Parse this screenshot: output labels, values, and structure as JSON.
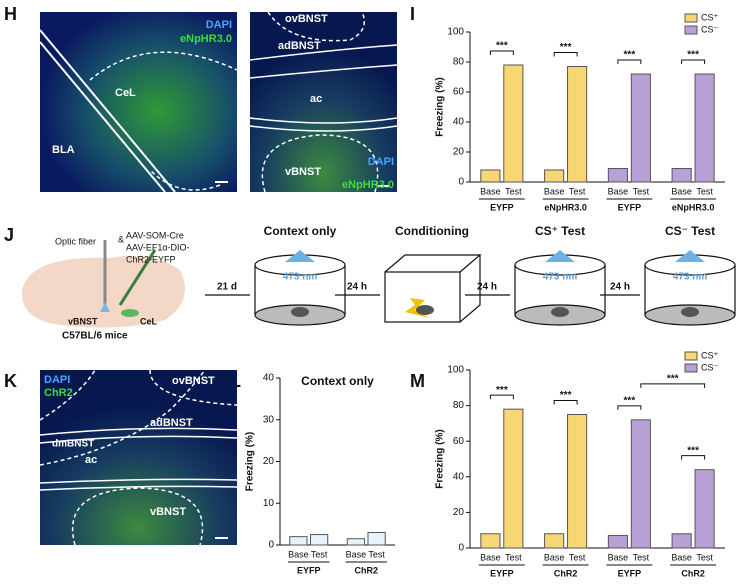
{
  "panels": {
    "H": "H",
    "I": "I",
    "J": "J",
    "K": "K",
    "L": "L",
    "M": "M"
  },
  "h_image": {
    "left": [
      "DAPI",
      "eNpHR3.0",
      "CeL",
      "BLA"
    ],
    "right": [
      "ovBNST",
      "adBNST",
      "ac",
      "vBNST",
      "DAPI",
      "eNpHR3.0"
    ]
  },
  "k_image": [
    "DAPI",
    "ChR2",
    "ovBNST",
    "dmBNST",
    "adBNST",
    "ac",
    "vBNST"
  ],
  "j_diagram": {
    "injection": [
      "Optic fiber",
      "&",
      "AAV-SOM-Cre",
      "AAV-EF1α-DIO-",
      "ChR2-EYFP",
      "vBNST",
      "CeL",
      "C57BL/6 mice"
    ],
    "delays": [
      "21 d",
      "24 h",
      "24 h",
      "24 h"
    ],
    "stages": [
      "Context only",
      "Conditioning",
      "CS⁺ Test",
      "CS⁻ Test"
    ],
    "light": [
      "473 nm",
      "473 nm",
      "473 nm"
    ]
  },
  "chart_data": [
    {
      "type": "bar",
      "ylabel": "Freezing (%)",
      "ylim": [
        0,
        100
      ],
      "yticks": [
        0,
        20,
        40,
        60,
        80,
        100
      ],
      "categories": [
        "Base",
        "Test",
        "Base",
        "Test",
        "Base",
        "Test",
        "Base",
        "Test"
      ],
      "groups": [
        "EYFP",
        "eNpHR3.0",
        "EYFP",
        "eNpHR3.0"
      ],
      "series": [
        {
          "name": "CS⁺",
          "color": "#f7d774",
          "values": [
            8,
            78,
            8,
            77,
            null,
            null,
            null,
            null
          ]
        },
        {
          "name": "CS⁻",
          "color": "#b9a0d6",
          "values": [
            null,
            null,
            null,
            null,
            9,
            72,
            9,
            72
          ]
        }
      ],
      "annotations": [
        {
          "text": "***",
          "bars": [
            0,
            1
          ]
        },
        {
          "text": "***",
          "bars": [
            2,
            3
          ]
        },
        {
          "text": "***",
          "bars": [
            4,
            5
          ]
        },
        {
          "text": "***",
          "bars": [
            6,
            7
          ]
        }
      ]
    },
    {
      "type": "bar",
      "title": "Context only",
      "ylabel": "Freezing (%)",
      "ylim": [
        0,
        40
      ],
      "yticks": [
        0,
        10,
        20,
        30,
        40
      ],
      "categories": [
        "Base",
        "Test",
        "Base",
        "Test"
      ],
      "groups": [
        "EYFP",
        "ChR2"
      ],
      "series": [
        {
          "color": "#e8f2fa",
          "values": [
            2,
            2.5,
            1.5,
            3
          ]
        }
      ],
      "annotations": []
    },
    {
      "type": "bar",
      "ylabel": "Freezing (%)",
      "ylim": [
        0,
        100
      ],
      "yticks": [
        0,
        20,
        40,
        60,
        80,
        100
      ],
      "categories": [
        "Base",
        "Test",
        "Base",
        "Test",
        "Base",
        "Test",
        "Base",
        "Test"
      ],
      "groups": [
        "EYFP",
        "ChR2",
        "EYFP",
        "ChR2"
      ],
      "series": [
        {
          "name": "CS⁺",
          "color": "#f7d774",
          "values": [
            8,
            78,
            8,
            75,
            null,
            null,
            null,
            null
          ]
        },
        {
          "name": "CS⁻",
          "color": "#b9a0d6",
          "values": [
            null,
            null,
            null,
            null,
            7,
            72,
            8,
            44
          ]
        }
      ],
      "annotations": [
        {
          "text": "***",
          "bars": [
            0,
            1
          ]
        },
        {
          "text": "***",
          "bars": [
            2,
            3
          ]
        },
        {
          "text": "***",
          "bars": [
            4,
            5
          ]
        },
        {
          "text": "***",
          "bars": [
            6,
            7
          ]
        },
        {
          "text": "***",
          "bars": [
            5,
            7
          ]
        }
      ]
    }
  ]
}
